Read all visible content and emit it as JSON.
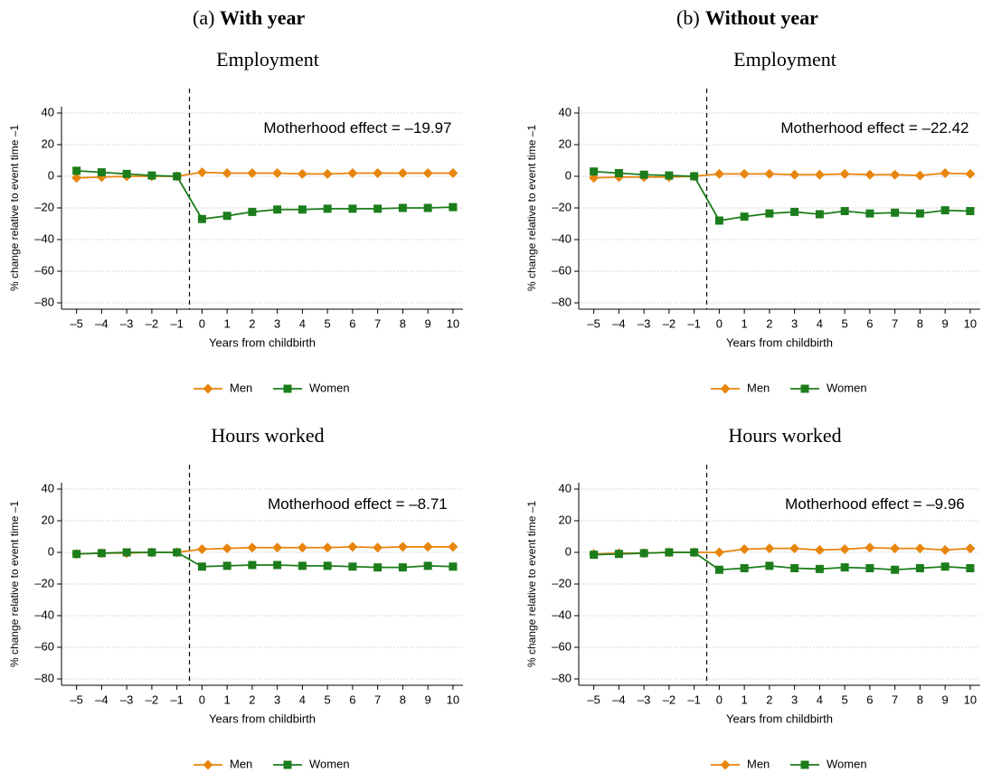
{
  "panel_labels": [
    "(a)",
    "(b)"
  ],
  "panel_titles": [
    "With year",
    "Without year"
  ],
  "chart_data": [
    {
      "type": "line",
      "title": "Employment",
      "annotation": "Motherhood effect = –19.97",
      "xlabel": "Years from childbirth",
      "ylabel": "% change relative to event time –1",
      "x": [
        -5,
        -4,
        -3,
        -2,
        -1,
        0,
        1,
        2,
        3,
        4,
        5,
        6,
        7,
        8,
        9,
        10
      ],
      "series": [
        {
          "name": "Men",
          "color": "#e8850c",
          "marker": "diamond",
          "values": [
            -1,
            -0.5,
            0,
            0,
            0,
            2.5,
            2,
            2,
            2,
            1.5,
            1.5,
            2,
            2,
            2,
            2,
            2
          ]
        },
        {
          "name": "Women",
          "color": "#1b7d1b",
          "marker": "square",
          "values": [
            3.5,
            2.5,
            1.5,
            0.5,
            0,
            -27,
            -25,
            -22.5,
            -21,
            -21,
            -20.5,
            -20.5,
            -20.5,
            -20,
            -20,
            -19.5
          ]
        }
      ],
      "xlim": [
        -5.6,
        10.4
      ],
      "ylim": [
        -84,
        44
      ],
      "xticks": [
        {
          "value": -5,
          "label": "–5"
        },
        {
          "value": -4,
          "label": "–4"
        },
        {
          "value": -3,
          "label": "–3"
        },
        {
          "value": -2,
          "label": "–2"
        },
        {
          "value": -1,
          "label": "–1"
        },
        0,
        1,
        2,
        3,
        4,
        5,
        6,
        7,
        8,
        9,
        10
      ],
      "yticks": [
        {
          "value": -80,
          "label": "–80"
        },
        {
          "value": -60,
          "label": "–60"
        },
        {
          "value": -40,
          "label": "–40"
        },
        {
          "value": -20,
          "label": "–20"
        },
        0,
        20,
        40
      ],
      "vline": -0.5,
      "grid": true,
      "legend": "bottom"
    },
    {
      "type": "line",
      "title": "Employment",
      "annotation": "Motherhood effect = –22.42",
      "xlabel": "Years from childbirth",
      "ylabel": "% change relative to event time –1",
      "x": [
        -5,
        -4,
        -3,
        -2,
        -1,
        0,
        1,
        2,
        3,
        4,
        5,
        6,
        7,
        8,
        9,
        10
      ],
      "series": [
        {
          "name": "Men",
          "color": "#e8850c",
          "marker": "diamond",
          "values": [
            -1,
            -0.5,
            -0.5,
            -0.5,
            0,
            1.5,
            1.5,
            1.5,
            1,
            1,
            1.5,
            1,
            1,
            0.5,
            2,
            1.5
          ]
        },
        {
          "name": "Women",
          "color": "#1b7d1b",
          "marker": "square",
          "values": [
            3,
            2,
            1,
            0.5,
            0,
            -28,
            -25.5,
            -23.5,
            -22.5,
            -24,
            -22,
            -23.5,
            -23,
            -23.5,
            -21.5,
            -22
          ]
        }
      ],
      "xlim": [
        -5.6,
        10.4
      ],
      "ylim": [
        -84,
        44
      ],
      "xticks": [
        {
          "value": -5,
          "label": "–5"
        },
        {
          "value": -4,
          "label": "–4"
        },
        {
          "value": -3,
          "label": "–3"
        },
        {
          "value": -2,
          "label": "–2"
        },
        {
          "value": -1,
          "label": "–1"
        },
        0,
        1,
        2,
        3,
        4,
        5,
        6,
        7,
        8,
        9,
        10
      ],
      "yticks": [
        {
          "value": -80,
          "label": "–80"
        },
        {
          "value": -60,
          "label": "–60"
        },
        {
          "value": -40,
          "label": "–40"
        },
        {
          "value": -20,
          "label": "–20"
        },
        0,
        20,
        40
      ],
      "vline": -0.5,
      "grid": true,
      "legend": "bottom"
    },
    {
      "type": "line",
      "title": "Hours worked",
      "annotation": "Motherhood effect = –8.71",
      "xlabel": "Years from childbirth",
      "ylabel": "% change relative to event time –1",
      "x": [
        -5,
        -4,
        -3,
        -2,
        -1,
        0,
        1,
        2,
        3,
        4,
        5,
        6,
        7,
        8,
        9,
        10
      ],
      "series": [
        {
          "name": "Men",
          "color": "#e8850c",
          "marker": "diamond",
          "values": [
            -1,
            -0.5,
            -0.5,
            0,
            0,
            2,
            2.5,
            3,
            3,
            3,
            3,
            3.5,
            3,
            3.5,
            3.5,
            3.5
          ]
        },
        {
          "name": "Women",
          "color": "#1b7d1b",
          "marker": "square",
          "values": [
            -1,
            -0.5,
            0,
            0,
            0,
            -9,
            -8.5,
            -8,
            -8,
            -8.5,
            -8.5,
            -9,
            -9.5,
            -9.5,
            -8.5,
            -9
          ]
        }
      ],
      "xlim": [
        -5.6,
        10.4
      ],
      "ylim": [
        -84,
        44
      ],
      "xticks": [
        {
          "value": -5,
          "label": "–5"
        },
        {
          "value": -4,
          "label": "–4"
        },
        {
          "value": -3,
          "label": "–3"
        },
        {
          "value": -2,
          "label": "–2"
        },
        {
          "value": -1,
          "label": "–1"
        },
        0,
        1,
        2,
        3,
        4,
        5,
        6,
        7,
        8,
        9,
        10
      ],
      "yticks": [
        {
          "value": -80,
          "label": "–80"
        },
        {
          "value": -60,
          "label": "–60"
        },
        {
          "value": -40,
          "label": "–40"
        },
        {
          "value": -20,
          "label": "–20"
        },
        0,
        20,
        40
      ],
      "vline": -0.5,
      "grid": true,
      "legend": "bottom"
    },
    {
      "type": "line",
      "title": "Hours worked",
      "annotation": "Motherhood effect = –9.96",
      "xlabel": "Years from childbirth",
      "ylabel": "% change relative to event time –1",
      "x": [
        -5,
        -4,
        -3,
        -2,
        -1,
        0,
        1,
        2,
        3,
        4,
        5,
        6,
        7,
        8,
        9,
        10
      ],
      "series": [
        {
          "name": "Men",
          "color": "#e8850c",
          "marker": "diamond",
          "values": [
            -1,
            -0.5,
            -0.5,
            0,
            0,
            0,
            2,
            2.5,
            2.5,
            1.5,
            2,
            3,
            2.5,
            2.5,
            1.5,
            2.5
          ]
        },
        {
          "name": "Women",
          "color": "#1b7d1b",
          "marker": "square",
          "values": [
            -1.5,
            -1,
            -0.5,
            0,
            0,
            -11,
            -10,
            -8.5,
            -10,
            -10.5,
            -9.5,
            -10,
            -11,
            -10,
            -9,
            -10
          ]
        }
      ],
      "xlim": [
        -5.6,
        10.4
      ],
      "ylim": [
        -84,
        44
      ],
      "xticks": [
        {
          "value": -5,
          "label": "–5"
        },
        {
          "value": -4,
          "label": "–4"
        },
        {
          "value": -3,
          "label": "–3"
        },
        {
          "value": -2,
          "label": "–2"
        },
        {
          "value": -1,
          "label": "–1"
        },
        0,
        1,
        2,
        3,
        4,
        5,
        6,
        7,
        8,
        9,
        10
      ],
      "yticks": [
        {
          "value": -80,
          "label": "–80"
        },
        {
          "value": -60,
          "label": "–60"
        },
        {
          "value": -40,
          "label": "–40"
        },
        {
          "value": -20,
          "label": "–20"
        },
        0,
        20,
        40
      ],
      "vline": -0.5,
      "grid": true,
      "legend": "bottom"
    }
  ]
}
